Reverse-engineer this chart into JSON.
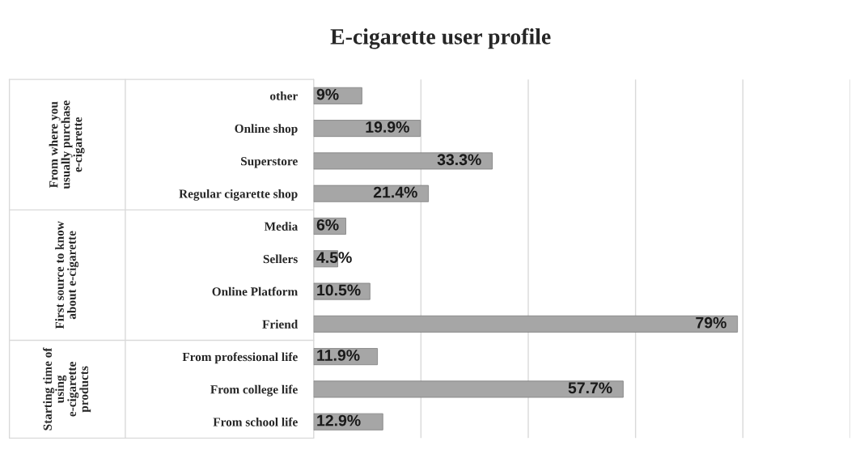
{
  "chart_data": {
    "type": "bar",
    "orientation": "horizontal",
    "title": "E-cigarette user profile",
    "categories": [
      "other",
      "Online shop",
      "Superstore",
      "Regular cigarette shop",
      "Media",
      "Sellers",
      "Online Platform",
      "Friend",
      "From professional life",
      "From college life",
      "From school life"
    ],
    "values": [
      9,
      19.9,
      33.3,
      21.4,
      6,
      4.5,
      10.5,
      79,
      11.9,
      57.7,
      12.9
    ],
    "value_labels": [
      "9%",
      "19.9%",
      "33.3%",
      "21.4%",
      "6%",
      "4.5%",
      "10.5%",
      "79%",
      "11.9%",
      "57.7%",
      "12.9%"
    ],
    "color": "#a6a6a6",
    "xlim": [
      0,
      100
    ],
    "xticks": [
      {
        "value": 0,
        "label": null
      },
      {
        "value": 20,
        "label": null
      },
      {
        "value": 40,
        "label": null
      },
      {
        "value": 60,
        "label": null
      },
      {
        "value": 80,
        "label": null
      },
      {
        "value": 100,
        "label": null
      }
    ],
    "grid": "x",
    "tick_labels": "y",
    "annotations": [
      "From where you usually purchase e-cigarette",
      "First source to know about e-cigarette",
      "Starting time of using e-cigarette products"
    ]
  }
}
